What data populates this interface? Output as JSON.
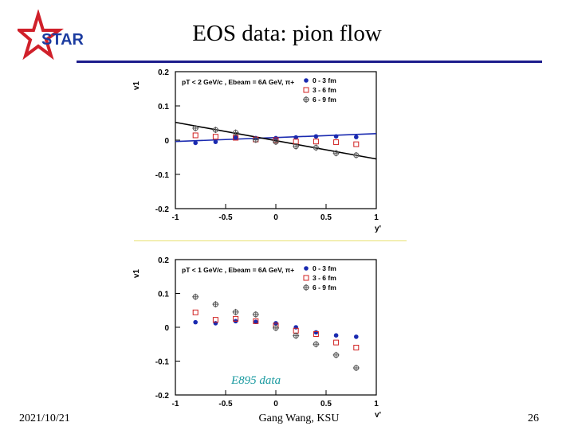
{
  "slide": {
    "title": "EOS data: pion flow",
    "date": "2021/10/21",
    "author": "Gang Wang, KSU",
    "page": "26",
    "logo_text": "STAR",
    "annotation": "E895 data",
    "title_rule_color": "#1c1c8c",
    "logo_color": "#d0202a"
  },
  "chart_data": [
    {
      "type": "scatter",
      "title": "pT < 2 GeV/c , Ebeam = 6A GeV, π+",
      "xlabel": "y'",
      "ylabel": "v1",
      "xlim": [
        -1,
        1
      ],
      "ylim": [
        -0.2,
        0.2
      ],
      "xticks": [
        "-1",
        "-0.5",
        "0",
        "0.5",
        "1"
      ],
      "yticks": [
        "0.2",
        "0.1",
        "0",
        "-0.1",
        "-0.2"
      ],
      "legend": [
        "0 - 3 fm",
        "3 - 6 fm",
        "6 - 9 fm"
      ],
      "series": [
        {
          "name": "0 - 3 fm",
          "marker": "filled-circle",
          "color": "#1a2ab0",
          "x": [
            -0.8,
            -0.6,
            -0.4,
            -0.2,
            0.0,
            0.2,
            0.4,
            0.6,
            0.8
          ],
          "y": [
            -0.008,
            -0.005,
            0.008,
            0.006,
            0.006,
            0.008,
            0.011,
            0.011,
            0.009
          ]
        },
        {
          "name": "3 - 6 fm",
          "marker": "open-square",
          "color": "#d02020",
          "x": [
            -0.8,
            -0.6,
            -0.4,
            -0.2,
            0.0,
            0.2,
            0.4,
            0.6,
            0.8
          ],
          "y": [
            0.014,
            0.01,
            0.007,
            0.002,
            0.0,
            -0.004,
            -0.004,
            -0.006,
            -0.012
          ]
        },
        {
          "name": "6 - 9 fm",
          "marker": "open-cross-circle",
          "color": "#555555",
          "x": [
            -0.8,
            -0.6,
            -0.4,
            -0.2,
            0.0,
            0.2,
            0.4,
            0.6,
            0.8
          ],
          "y": [
            0.035,
            0.03,
            0.022,
            0.001,
            -0.005,
            -0.018,
            -0.022,
            -0.038,
            -0.044
          ]
        }
      ],
      "fit_lines": [
        {
          "name": "fit 0 - 3 fm",
          "color": "#1a2ab0",
          "x": [
            -1,
            1
          ],
          "y": [
            -0.004,
            0.019
          ]
        },
        {
          "name": "fit 6 - 9 fm",
          "color": "#000000",
          "x": [
            -1,
            1
          ],
          "y": [
            0.052,
            -0.055
          ]
        }
      ]
    },
    {
      "type": "scatter",
      "title": "pT < 1 GeV/c , Ebeam = 6A GeV, π+",
      "xlabel": "y'",
      "ylabel": "v1",
      "xlim": [
        -1,
        1
      ],
      "ylim": [
        -0.2,
        0.2
      ],
      "xticks": [
        "-1",
        "-0.5",
        "0",
        "0.5",
        "1"
      ],
      "yticks": [
        "0.2",
        "0.1",
        "0",
        "-0.1",
        "-0.2"
      ],
      "legend": [
        "0 - 3 fm",
        "3 - 6 fm",
        "6 - 9 fm"
      ],
      "series": [
        {
          "name": "0 - 3 fm",
          "marker": "filled-circle",
          "color": "#1a2ab0",
          "x": [
            -0.8,
            -0.6,
            -0.4,
            -0.2,
            0.0,
            0.2,
            0.4,
            0.6,
            0.8
          ],
          "y": [
            0.015,
            0.012,
            0.018,
            0.016,
            0.012,
            0.0,
            -0.015,
            -0.024,
            -0.028
          ]
        },
        {
          "name": "3 - 6 fm",
          "marker": "open-square",
          "color": "#d02020",
          "x": [
            -0.8,
            -0.6,
            -0.4,
            -0.2,
            0.0,
            0.2,
            0.4,
            0.6,
            0.8
          ],
          "y": [
            0.044,
            0.022,
            0.025,
            0.018,
            0.005,
            -0.01,
            -0.02,
            -0.045,
            -0.06
          ]
        },
        {
          "name": "6 - 9 fm",
          "marker": "open-cross-circle",
          "color": "#555555",
          "x": [
            -0.8,
            -0.6,
            -0.4,
            -0.2,
            0.0,
            0.2,
            0.4,
            0.6,
            0.8
          ],
          "y": [
            0.09,
            0.068,
            0.045,
            0.038,
            -0.002,
            -0.025,
            -0.05,
            -0.082,
            -0.12
          ]
        }
      ]
    }
  ]
}
